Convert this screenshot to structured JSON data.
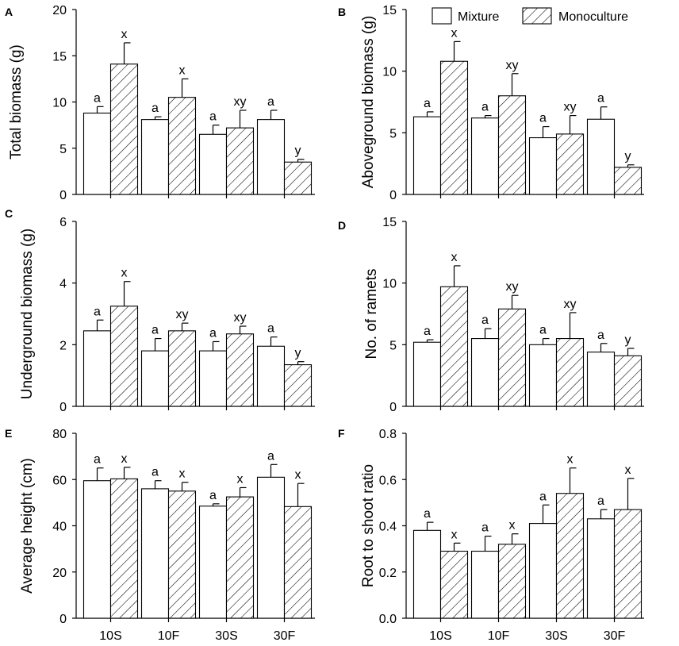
{
  "legend": {
    "mixture": "Mixture",
    "monoculture": "Monoculture"
  },
  "colors": {
    "mixture_fill": "#ffffff",
    "hatch_stroke": "#000000"
  },
  "chart_data": [
    {
      "panel": "A",
      "type": "bar",
      "ylabel": "Total biomass (g)",
      "ylim": [
        0,
        20
      ],
      "yticks": [
        "0",
        "5",
        "10",
        "15",
        "20"
      ],
      "ytick_values": [
        0,
        5,
        10,
        15,
        20
      ],
      "categories": [
        "10S",
        "10F",
        "30S",
        "30F"
      ],
      "show_xticklabels": false,
      "series": [
        {
          "name": "Mixture",
          "values": [
            8.8,
            8.1,
            6.5,
            8.1
          ],
          "errors": [
            0.7,
            0.3,
            1.0,
            1.0
          ],
          "labels": [
            "a",
            "a",
            "a",
            "a"
          ]
        },
        {
          "name": "Monoculture",
          "values": [
            14.1,
            10.5,
            7.2,
            3.5
          ],
          "errors": [
            2.3,
            2.0,
            1.9,
            0.3
          ],
          "labels": [
            "x",
            "x",
            "xy",
            "y"
          ]
        }
      ]
    },
    {
      "panel": "B",
      "type": "bar",
      "ylabel": "Aboveground biomass (g)",
      "ylim": [
        0,
        15
      ],
      "yticks": [
        "0",
        "5",
        "10",
        "15"
      ],
      "ytick_values": [
        0,
        5,
        10,
        15
      ],
      "categories": [
        "10S",
        "10F",
        "30S",
        "30F"
      ],
      "show_xticklabels": false,
      "legend": "top",
      "series": [
        {
          "name": "Mixture",
          "values": [
            6.3,
            6.2,
            4.6,
            6.1
          ],
          "errors": [
            0.4,
            0.2,
            0.9,
            1.0
          ],
          "labels": [
            "a",
            "a",
            "a",
            "a"
          ]
        },
        {
          "name": "Monoculture",
          "values": [
            10.8,
            8.0,
            4.9,
            2.2
          ],
          "errors": [
            1.6,
            1.8,
            1.5,
            0.2
          ],
          "labels": [
            "x",
            "xy",
            "xy",
            "y"
          ]
        }
      ]
    },
    {
      "panel": "C",
      "type": "bar",
      "ylabel": "Underground biomass (g)",
      "ylim": [
        0,
        6
      ],
      "yticks": [
        "0",
        "2",
        "4",
        "6"
      ],
      "ytick_values": [
        0,
        2,
        4,
        6
      ],
      "categories": [
        "10S",
        "10F",
        "30S",
        "30F"
      ],
      "show_xticklabels": false,
      "series": [
        {
          "name": "Mixture",
          "values": [
            2.45,
            1.8,
            1.8,
            1.95
          ],
          "errors": [
            0.35,
            0.4,
            0.3,
            0.3
          ],
          "labels": [
            "a",
            "a",
            "a",
            "a"
          ]
        },
        {
          "name": "Monoculture",
          "values": [
            3.25,
            2.45,
            2.35,
            1.35
          ],
          "errors": [
            0.8,
            0.25,
            0.25,
            0.1
          ],
          "labels": [
            "x",
            "xy",
            "xy",
            "y"
          ]
        }
      ]
    },
    {
      "panel": "D",
      "type": "bar",
      "ylabel": "No. of ramets",
      "ylim": [
        0,
        15
      ],
      "yticks": [
        "0",
        "5",
        "10",
        "15"
      ],
      "ytick_values": [
        0,
        5,
        10,
        15
      ],
      "categories": [
        "10S",
        "10F",
        "30S",
        "30F"
      ],
      "show_xticklabels": false,
      "series": [
        {
          "name": "Mixture",
          "values": [
            5.2,
            5.5,
            5.0,
            4.4
          ],
          "errors": [
            0.2,
            0.8,
            0.5,
            0.7
          ],
          "labels": [
            "a",
            "a",
            "a",
            "a"
          ]
        },
        {
          "name": "Monoculture",
          "values": [
            9.7,
            7.9,
            5.5,
            4.1
          ],
          "errors": [
            1.7,
            1.1,
            2.1,
            0.6
          ],
          "labels": [
            "x",
            "xy",
            "xy",
            "y"
          ]
        }
      ]
    },
    {
      "panel": "E",
      "type": "bar",
      "ylabel": "Average height (cm)",
      "ylim": [
        0,
        80
      ],
      "yticks": [
        "0",
        "20",
        "40",
        "60",
        "80"
      ],
      "ytick_values": [
        0,
        20,
        40,
        60,
        80
      ],
      "categories": [
        "10S",
        "10F",
        "30S",
        "30F"
      ],
      "show_xticklabels": true,
      "series": [
        {
          "name": "Mixture",
          "values": [
            59.5,
            56.0,
            48.5,
            61.0
          ],
          "errors": [
            5.5,
            3.5,
            1.0,
            5.5
          ],
          "labels": [
            "a",
            "a",
            "a",
            "a"
          ]
        },
        {
          "name": "Monoculture",
          "values": [
            60.3,
            55.0,
            52.5,
            48.3
          ],
          "errors": [
            5.0,
            3.8,
            4.0,
            10.0
          ],
          "labels": [
            "x",
            "x",
            "x",
            "x"
          ]
        }
      ]
    },
    {
      "panel": "F",
      "type": "bar",
      "ylabel": "Root to shoot ratio",
      "ylim": [
        0,
        0.8
      ],
      "yticks": [
        "0.0",
        "0.2",
        "0.4",
        "0.6",
        "0.8"
      ],
      "ytick_values": [
        0,
        0.2,
        0.4,
        0.6,
        0.8
      ],
      "categories": [
        "10S",
        "10F",
        "30S",
        "30F"
      ],
      "show_xticklabels": true,
      "series": [
        {
          "name": "Mixture",
          "values": [
            0.38,
            0.29,
            0.41,
            0.43
          ],
          "errors": [
            0.035,
            0.065,
            0.08,
            0.04
          ],
          "labels": [
            "a",
            "a",
            "a",
            "a"
          ]
        },
        {
          "name": "Monoculture",
          "values": [
            0.29,
            0.32,
            0.54,
            0.47
          ],
          "errors": [
            0.035,
            0.045,
            0.11,
            0.135
          ],
          "labels": [
            "x",
            "x",
            "x",
            "x"
          ]
        }
      ]
    }
  ]
}
